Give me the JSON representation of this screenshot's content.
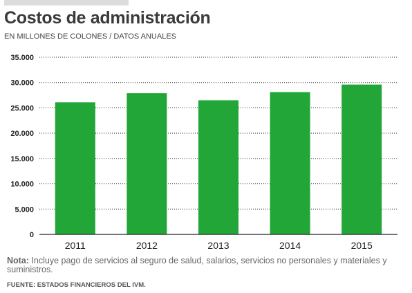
{
  "header": {
    "title": "Costos de administración",
    "subtitle": "EN MILLONES DE COLONES / DATOS ANUALES"
  },
  "footer": {
    "note_label": "Nota:",
    "note_text": " Incluye pago de servicios al seguro de salud, salarios, servicios no personales y materiales y suministros.",
    "source": "FUENTE: ESTADOS FINANCIEROS DEL IVM."
  },
  "colors": {
    "bar": "#22a638",
    "grid": "#222222",
    "axis": "#222222"
  },
  "chart_data": {
    "type": "bar",
    "categories": [
      "2011",
      "2012",
      "2013",
      "2014",
      "2015"
    ],
    "values": [
      26100,
      27900,
      26500,
      28100,
      29600
    ],
    "title": "Costos de administración",
    "xlabel": "",
    "ylabel": "",
    "ylim": [
      0,
      35000
    ],
    "yticks": [
      0,
      5000,
      10000,
      15000,
      20000,
      25000,
      30000,
      35000
    ],
    "ytick_labels": [
      "0",
      "5.000",
      "10.000",
      "15.000",
      "20.000",
      "25.000",
      "30.000",
      "35.000"
    ],
    "grid": true,
    "gridline_style": "dotted",
    "legend": "none"
  }
}
